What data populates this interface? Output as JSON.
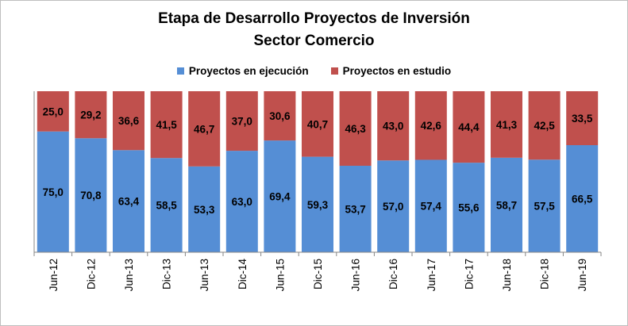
{
  "chart_data": {
    "type": "bar",
    "stacked": true,
    "percent": true,
    "title": "Etapa de Desarrollo Proyectos de Inversión",
    "subtitle": "Sector Comercio",
    "categories": [
      "Jun-12",
      "Dic-12",
      "Jun-13",
      "Dic-13",
      "Jun-13",
      "Dic-14",
      "Jun-15",
      "Dic-15",
      "Jun-16",
      "Dic-16",
      "Jun-17",
      "Dic-17",
      "Jun-18",
      "Dic-18",
      "Jun-19"
    ],
    "series": [
      {
        "name": "Proyectos en ejecución",
        "color": "#558ed5",
        "values": [
          75.0,
          70.8,
          63.4,
          58.5,
          53.3,
          63.0,
          69.4,
          59.3,
          53.7,
          57.0,
          57.4,
          55.6,
          58.7,
          57.5,
          66.5
        ],
        "labels": [
          "75,0",
          "70,8",
          "63,4",
          "58,5",
          "53,3",
          "63,0",
          "69,4",
          "59,3",
          "53,7",
          "57,0",
          "57,4",
          "55,6",
          "58,7",
          "57,5",
          "66,5"
        ]
      },
      {
        "name": "Proyectos en estudio",
        "color": "#c0504d",
        "values": [
          25.0,
          29.2,
          36.6,
          41.5,
          46.7,
          37.0,
          30.6,
          40.7,
          46.3,
          43.0,
          42.6,
          44.4,
          41.3,
          42.5,
          33.5
        ],
        "labels": [
          "25,0",
          "29,2",
          "36,6",
          "41,5",
          "46,7",
          "37,0",
          "30,6",
          "40,7",
          "46,3",
          "43,0",
          "42,6",
          "44,4",
          "41,3",
          "42,5",
          "33,5"
        ]
      }
    ],
    "ylim": [
      0,
      100
    ],
    "legend_position": "top",
    "grid": false
  }
}
